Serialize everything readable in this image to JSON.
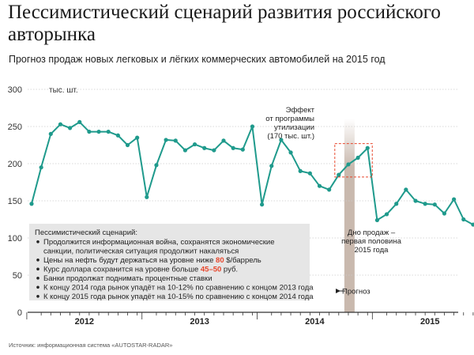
{
  "title": "Пессимистический сценарий развития российского авторынка",
  "subtitle": "Прогноз продаж новых легковых и лёгких коммерческих автомобилей на 2015 год",
  "source": "Источник: информационная система «AUTOSTAR-RADAR»",
  "colors": {
    "line": "#1f9a8c",
    "highlight": "#e8462b",
    "forecast_band": "#c9b9ae",
    "box": "#e6e6e6",
    "grid": "#cccccc"
  },
  "annotations": {
    "effect": [
      "Эффект",
      "от программы",
      "утилизации",
      "(170 тыс. шт.)"
    ],
    "bottom": [
      "Дно продаж –",
      "первая половина",
      "2015 года"
    ],
    "forecast": "Прогноз"
  },
  "scenario": {
    "header": "Пессимистический сценарий:",
    "items": [
      [
        {
          "t": "Продолжится информационная война, сохранятся экономические"
        }
      ],
      [
        {
          "t": "санкции, политическая ситуация продолжит накаляться",
          "cont": true
        }
      ],
      [
        {
          "t": "Цены на нефть будут держаться на уровне ниже "
        },
        {
          "t": "80",
          "hl": true
        },
        {
          "t": " $/баррель"
        }
      ],
      [
        {
          "t": "Курс доллара сохранится на уровне больше "
        },
        {
          "t": "45–50",
          "hl": true
        },
        {
          "t": " руб."
        }
      ],
      [
        {
          "t": "Банки продолжат поднимать процентные ставки"
        }
      ],
      [
        {
          "t": "К концу 2014 года рынок упадёт на 10-12% по сравнению с концом 2013 года"
        }
      ],
      [
        {
          "t": "К концу 2015 года рынок упадёт на 10-15% по сравнению с концом 2014 года"
        }
      ]
    ]
  },
  "chart_data": {
    "type": "line",
    "ylabel": "тыс. шт.",
    "ylim": [
      0,
      300
    ],
    "yticks": [
      0,
      50,
      100,
      150,
      200,
      250,
      300
    ],
    "grid": true,
    "years": [
      "2012",
      "2013",
      "2014",
      "2015"
    ],
    "series": [
      {
        "values": [
          146,
          195,
          240,
          253,
          248,
          256,
          243,
          243,
          243,
          238,
          225,
          235,
          155,
          198,
          232,
          231,
          218,
          226,
          221,
          218,
          231,
          221,
          219,
          250,
          145,
          197,
          232,
          215,
          190,
          187,
          170,
          165,
          185,
          199,
          208,
          221,
          124,
          132,
          146,
          165,
          150,
          146,
          145,
          133,
          152,
          125,
          118,
          127
        ]
      }
    ],
    "forecast_start_index": 33
  }
}
